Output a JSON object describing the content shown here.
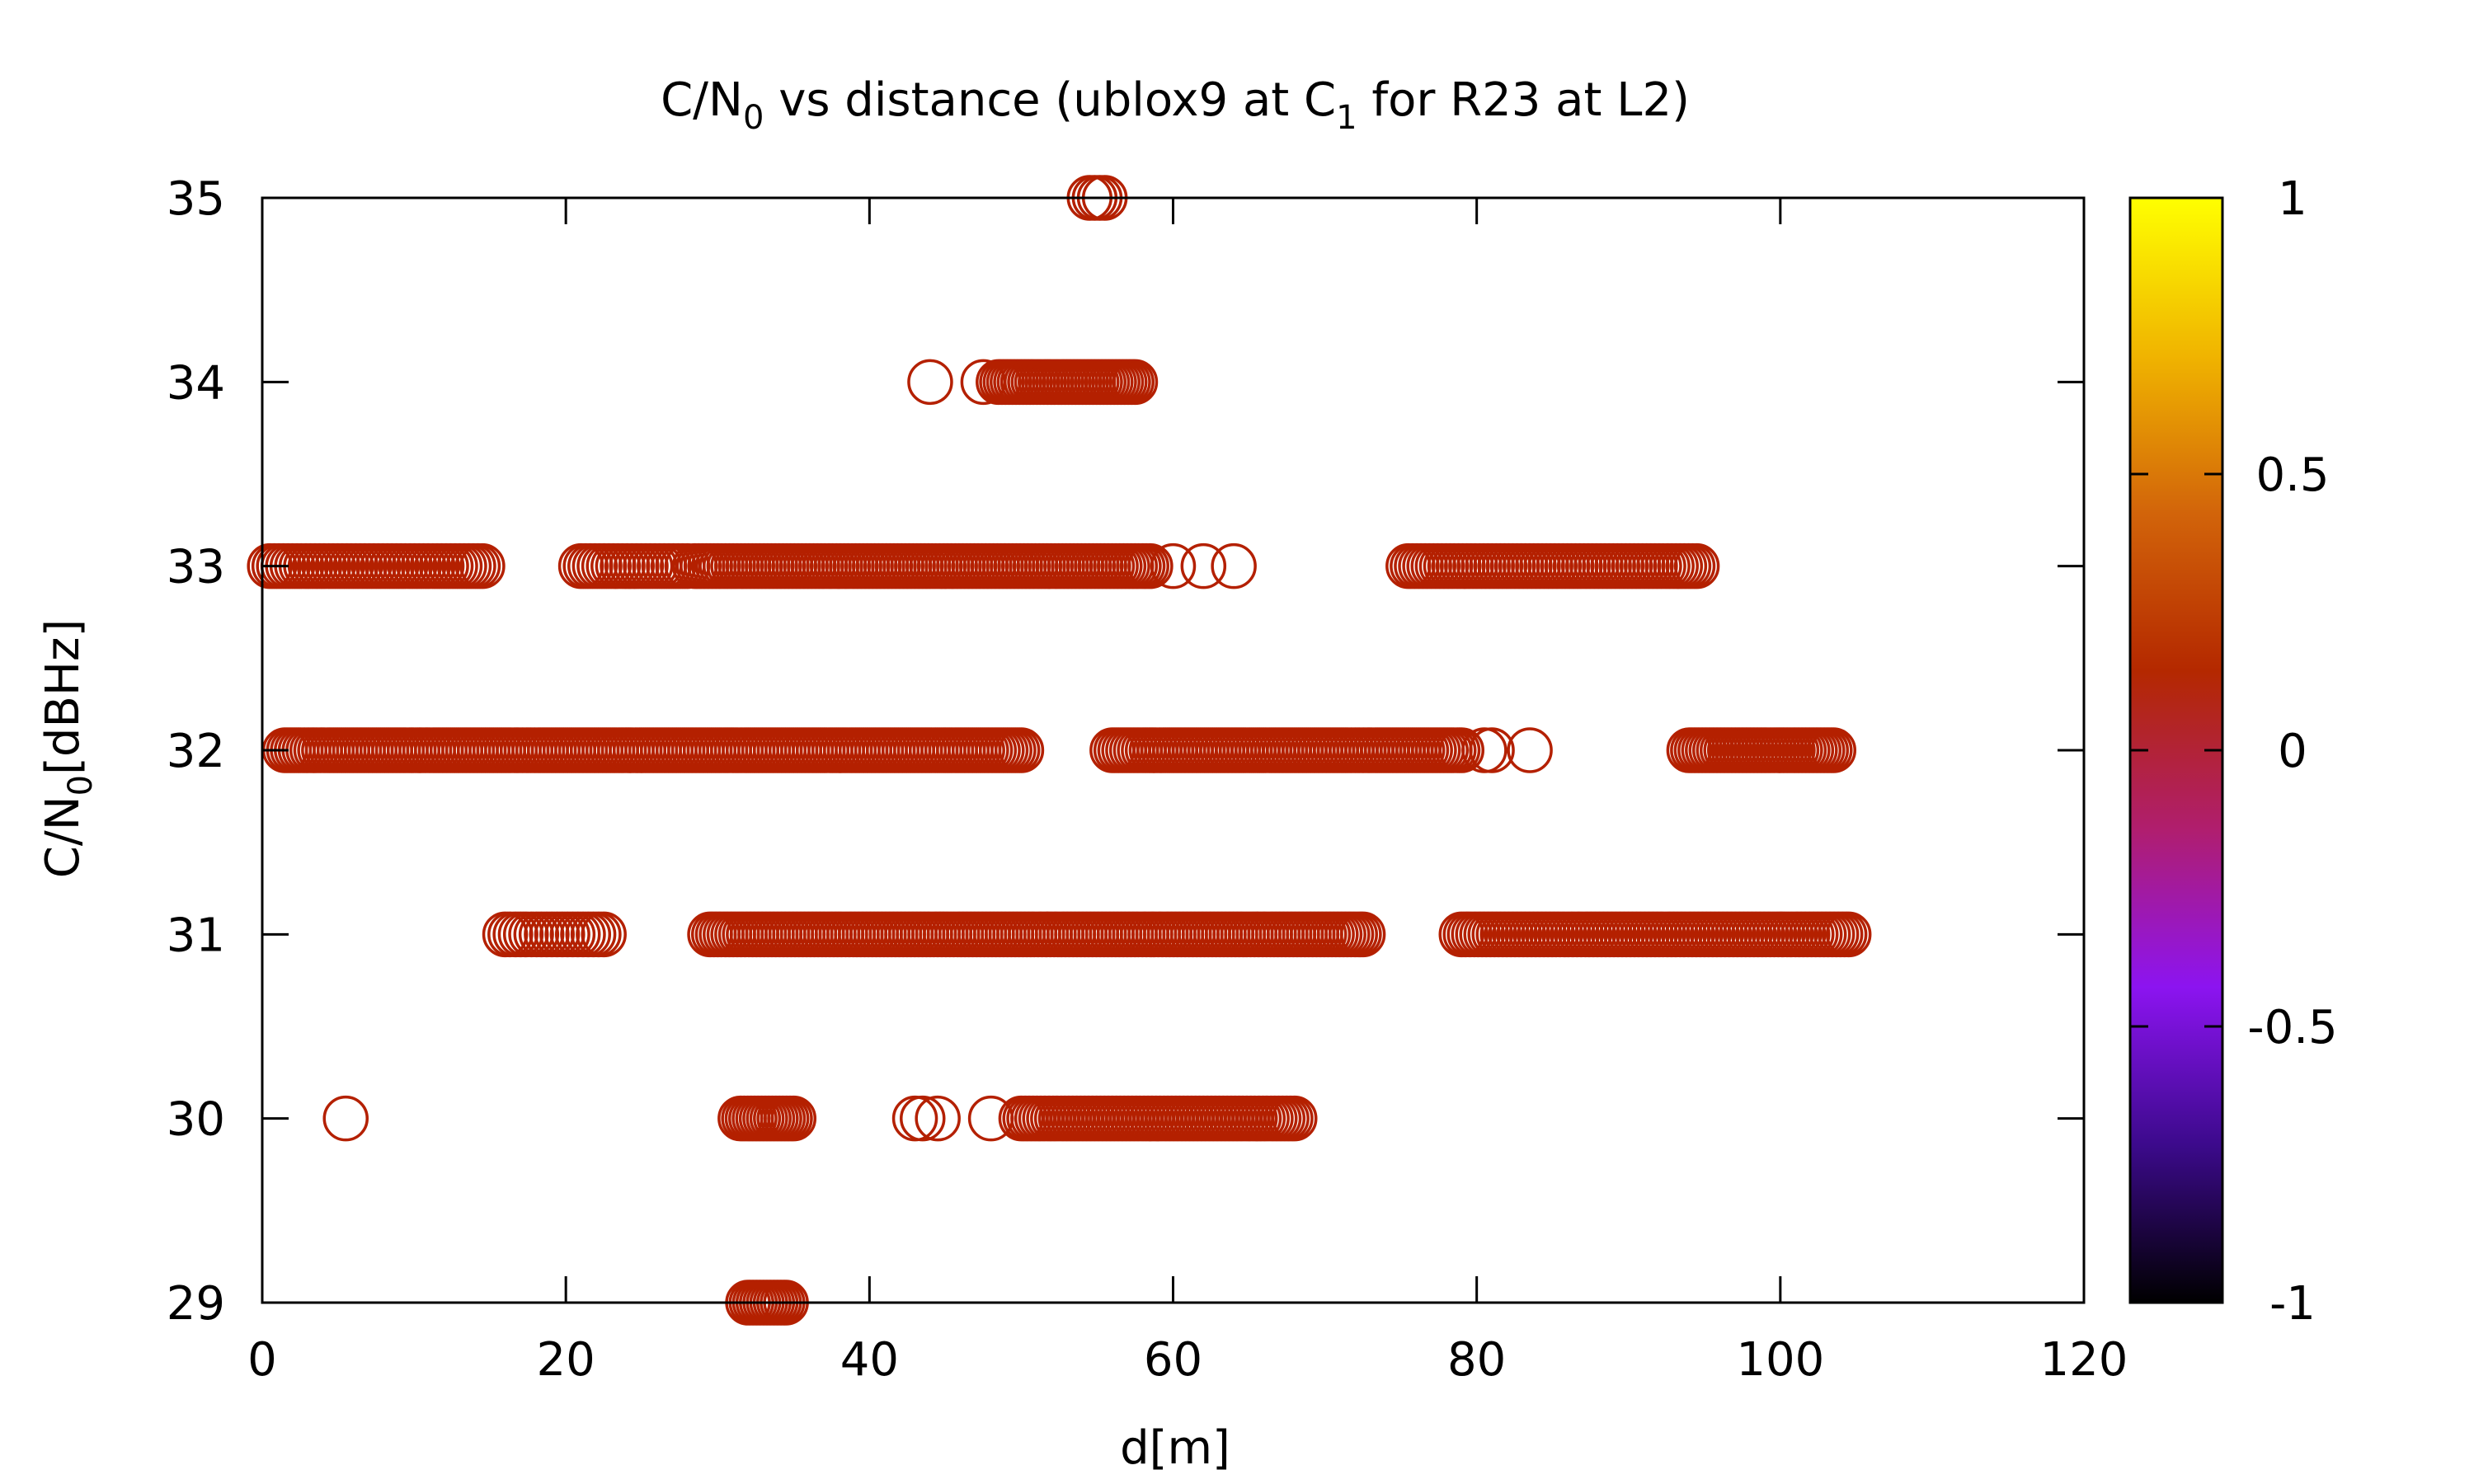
{
  "chart_data": {
    "type": "scatter",
    "title": {
      "pre": "C/N",
      "sub1": "0",
      "mid": " vs distance (ublox9 at C",
      "sub2": "1",
      "post": " for R23 at L2)"
    },
    "xlabel": "d[m]",
    "ylabel": {
      "pre": "C/N",
      "sub": "0",
      "post": "[dBHz]"
    },
    "xlim": [
      0,
      120
    ],
    "ylim": [
      29,
      35
    ],
    "xticks": [
      "0",
      "20",
      "40",
      "60",
      "80",
      "100",
      "120"
    ],
    "yticks": [
      "29",
      "30",
      "31",
      "32",
      "33",
      "34",
      "35"
    ],
    "colorbar": {
      "range": [
        -1,
        1
      ],
      "ticks": [
        "-1",
        "-0.5",
        "0",
        "0.5",
        "1"
      ],
      "gradient": [
        "#000000",
        "#3c0a8c",
        "#8c14f0",
        "#b01e6e",
        "#b42800",
        "#d2640a",
        "#f0b400",
        "#ffff00"
      ]
    },
    "marker_color": "#b42000",
    "series": [
      {
        "color_value": 0,
        "segments": [
          {
            "y": 35,
            "x_start": 54.5,
            "x_end": 55.5,
            "count": 4
          },
          {
            "y": 34,
            "x": [
              44.0,
              47.5
            ]
          },
          {
            "y": 34,
            "x_start": 48.5,
            "x_end": 57.5,
            "count": 40
          },
          {
            "y": 33,
            "x_start": 0.5,
            "x_end": 14.5,
            "count": 48
          },
          {
            "y": 33,
            "x_start": 21.0,
            "x_end": 28.0,
            "count": 24
          },
          {
            "y": 33,
            "x_start": 28.5,
            "x_end": 58.5,
            "count": 120
          },
          {
            "y": 33,
            "x": [
              60.0,
              62.0,
              64.0
            ]
          },
          {
            "y": 33,
            "x_start": 75.5,
            "x_end": 94.5,
            "count": 70
          },
          {
            "y": 32,
            "x_start": 1.5,
            "x_end": 50.0,
            "count": 190
          },
          {
            "y": 32,
            "x_start": 56.0,
            "x_end": 79.0,
            "count": 90
          },
          {
            "y": 32,
            "x": [
              80.5,
              81.0,
              83.5
            ]
          },
          {
            "y": 32,
            "x_start": 94.0,
            "x_end": 103.5,
            "count": 40
          },
          {
            "y": 31,
            "x_start": 16.0,
            "x_end": 22.5,
            "count": 20
          },
          {
            "y": 31,
            "x_start": 29.5,
            "x_end": 72.5,
            "count": 170
          },
          {
            "y": 31,
            "x_start": 79.0,
            "x_end": 104.5,
            "count": 95
          },
          {
            "y": 30,
            "x": [
              5.5
            ]
          },
          {
            "y": 30,
            "x_start": 31.5,
            "x_end": 35.0,
            "count": 16
          },
          {
            "y": 30,
            "x": [
              43.0,
              43.5,
              44.5,
              48.0
            ]
          },
          {
            "y": 30,
            "x_start": 50.0,
            "x_end": 68.0,
            "count": 70
          },
          {
            "y": 29,
            "x_start": 32.0,
            "x_end": 34.5,
            "count": 12
          }
        ]
      }
    ]
  }
}
